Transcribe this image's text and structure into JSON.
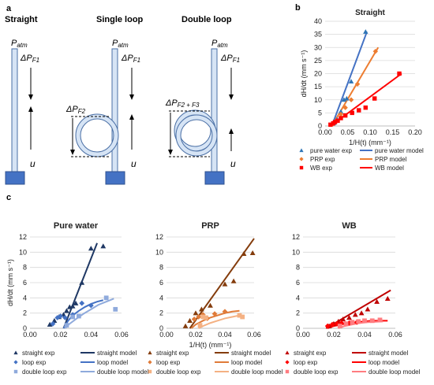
{
  "panel_labels": {
    "a": "a",
    "b": "b",
    "c": "c"
  },
  "diagrams": {
    "titles": [
      "Straight",
      "Single loop",
      "Double loop"
    ],
    "p_atm": "P",
    "p_atm_sub": "atm",
    "dp_f1": "ΔP",
    "dp_f1_sub": "F1",
    "dp_f2": "ΔP",
    "dp_f2_sub": "F2",
    "dp_f2f3": "ΔP",
    "dp_f2f3_sub": "F2 + F3",
    "u_label": "u",
    "tube_fill": "#d6e4f5",
    "tube_stroke": "#4a6fa5",
    "reservoir_color": "#4472c4"
  },
  "colors": {
    "blue_exp": "#2e75b6",
    "blue_model": "#4472c4",
    "orange_exp": "#ed7d31",
    "orange_model": "#ed7d31",
    "red_exp": "#ff0000",
    "red_model": "#ff0000",
    "navy": "#1f3864",
    "mid_blue": "#4472c4",
    "light_blue": "#8faadc",
    "brown": "#843c0c",
    "mid_orange": "#e07b39",
    "light_orange": "#f4b183",
    "dark_red": "#c00000",
    "mid_red": "#ff0000",
    "light_red": "#ff7c80"
  },
  "chart_data": [
    {
      "id": "b",
      "type": "scatter",
      "title": "Straight",
      "xlabel": "1/H(t) (mm⁻¹)",
      "ylabel": "dH/dt (mm s⁻¹)",
      "xlim": [
        0,
        0.2
      ],
      "ylim": [
        0,
        40
      ],
      "xticks": [
        "0.00",
        "0.05",
        "0.10",
        "0.15",
        "0.20"
      ],
      "yticks": [
        "0",
        "5",
        "10",
        "15",
        "20",
        "25",
        "30",
        "35",
        "40"
      ],
      "series": [
        {
          "name": "pure water exp",
          "kind": "exp",
          "marker": "triangle",
          "color": "#2e75b6",
          "x": [
            0.02,
            0.027,
            0.035,
            0.042,
            0.048,
            0.058,
            0.09
          ],
          "y": [
            1.2,
            2.5,
            5.5,
            10.0,
            10.5,
            17.0,
            36.0
          ]
        },
        {
          "name": "PRP exp",
          "kind": "exp",
          "marker": "diamond",
          "color": "#ed7d31",
          "x": [
            0.018,
            0.025,
            0.035,
            0.045,
            0.058,
            0.072,
            0.112
          ],
          "y": [
            0.8,
            2.0,
            4.5,
            7.0,
            10.0,
            16.0,
            28.5
          ]
        },
        {
          "name": "WB exp",
          "kind": "exp",
          "marker": "square",
          "color": "#ff0000",
          "x": [
            0.012,
            0.018,
            0.022,
            0.028,
            0.035,
            0.045,
            0.06,
            0.075,
            0.09,
            0.11,
            0.165
          ],
          "y": [
            0.5,
            1.0,
            1.5,
            2.0,
            3.0,
            4.0,
            5.0,
            6.0,
            7.0,
            10.5,
            20.0
          ]
        },
        {
          "name": "pure water model",
          "kind": "model",
          "color": "#4472c4",
          "x": [
            0.015,
            0.093
          ],
          "y": [
            0.0,
            36.0
          ]
        },
        {
          "name": "PRP model",
          "kind": "model",
          "color": "#ed7d31",
          "x": [
            0.015,
            0.118
          ],
          "y": [
            0.0,
            30.0
          ]
        },
        {
          "name": "WB model",
          "kind": "model",
          "color": "#ff0000",
          "x": [
            0.012,
            0.17
          ],
          "y": [
            0.0,
            20.0
          ]
        }
      ],
      "legend": [
        {
          "label": "pure water exp",
          "series": 0
        },
        {
          "label": "pure water model",
          "series": 3
        },
        {
          "label": "PRP exp",
          "series": 1
        },
        {
          "label": "PRP model",
          "series": 4
        },
        {
          "label": "WB exp",
          "series": 2
        },
        {
          "label": "WB model",
          "series": 5
        }
      ]
    },
    {
      "id": "c1",
      "type": "scatter",
      "title": "Pure water",
      "xlabel": "",
      "ylabel": "dH/dt (mm s⁻¹)",
      "xlim": [
        0,
        0.06
      ],
      "ylim": [
        0,
        12
      ],
      "xticks": [
        "0.00",
        "0.02",
        "0.04",
        "0.06"
      ],
      "yticks": [
        "0",
        "2",
        "4",
        "6",
        "8",
        "10",
        "12"
      ],
      "series": [
        {
          "name": "straight exp",
          "kind": "exp",
          "marker": "triangle",
          "color": "#1f3864",
          "x": [
            0.013,
            0.016,
            0.019,
            0.022,
            0.024,
            0.026,
            0.028,
            0.03,
            0.034,
            0.04,
            0.048
          ],
          "y": [
            0.5,
            1.0,
            1.5,
            1.8,
            2.3,
            2.8,
            2.9,
            3.3,
            6.0,
            10.5,
            10.8
          ]
        },
        {
          "name": "loop exp",
          "kind": "exp",
          "marker": "diamond",
          "color": "#4472c4",
          "x": [
            0.015,
            0.018,
            0.02,
            0.023,
            0.028,
            0.034,
            0.04
          ],
          "y": [
            0.6,
            1.4,
            1.6,
            1.4,
            1.8,
            3.3,
            3.0
          ]
        },
        {
          "name": "double loop exp",
          "kind": "exp",
          "marker": "square",
          "color": "#8faadc",
          "x": [
            0.024,
            0.028,
            0.032,
            0.05,
            0.056
          ],
          "y": [
            0.4,
            1.5,
            1.6,
            4.0,
            2.5
          ]
        },
        {
          "name": "straight model",
          "kind": "model",
          "color": "#1f3864",
          "x": [
            0.022,
            0.044
          ],
          "y": [
            0.0,
            11.2
          ]
        },
        {
          "name": "loop model",
          "kind": "model",
          "color": "#4472c4",
          "x": [
            0.022,
            0.025,
            0.028,
            0.032,
            0.036,
            0.04,
            0.044,
            0.048
          ],
          "y": [
            0.0,
            1.0,
            1.7,
            2.3,
            2.8,
            3.2,
            3.5,
            3.7
          ]
        },
        {
          "name": "double loop model",
          "kind": "model",
          "color": "#8faadc",
          "x": [
            0.023,
            0.026,
            0.03,
            0.035,
            0.04,
            0.045,
            0.05,
            0.055
          ],
          "y": [
            0.0,
            0.6,
            1.2,
            1.9,
            2.5,
            3.1,
            3.5,
            3.9
          ]
        }
      ]
    },
    {
      "id": "c2",
      "type": "scatter",
      "title": "PRP",
      "xlabel": "1/H(t) (mm⁻¹)",
      "ylabel": "",
      "xlim": [
        0,
        0.06
      ],
      "ylim": [
        0,
        12
      ],
      "xticks": [
        "0.00",
        "0.02",
        "0.04",
        "0.06"
      ],
      "yticks": [
        "0",
        "2",
        "4",
        "6",
        "8",
        "10",
        "12"
      ],
      "series": [
        {
          "name": "straight exp",
          "kind": "exp",
          "marker": "triangle",
          "color": "#843c0c",
          "x": [
            0.013,
            0.016,
            0.02,
            0.024,
            0.03,
            0.04,
            0.046,
            0.053,
            0.059
          ],
          "y": [
            0.3,
            1.0,
            2.0,
            2.5,
            3.0,
            5.8,
            6.2,
            9.8,
            9.9
          ]
        },
        {
          "name": "loop exp",
          "kind": "exp",
          "marker": "diamond",
          "color": "#e07b39",
          "x": [
            0.019,
            0.022,
            0.025,
            0.028,
            0.033,
            0.04
          ],
          "y": [
            1.2,
            1.5,
            1.8,
            1.3,
            1.9,
            2.2
          ]
        },
        {
          "name": "double loop exp",
          "kind": "exp",
          "marker": "square",
          "color": "#f4b183",
          "x": [
            0.023,
            0.025,
            0.027,
            0.05,
            0.052
          ],
          "y": [
            0.4,
            1.5,
            1.4,
            1.7,
            1.5
          ]
        },
        {
          "name": "straight model",
          "kind": "model",
          "color": "#843c0c",
          "x": [
            0.016,
            0.06
          ],
          "y": [
            0.0,
            11.8
          ]
        },
        {
          "name": "loop model",
          "kind": "model",
          "color": "#e07b39",
          "x": [
            0.017,
            0.02,
            0.025,
            0.03,
            0.035,
            0.04,
            0.045,
            0.05
          ],
          "y": [
            0.0,
            0.5,
            1.0,
            1.4,
            1.7,
            2.0,
            2.2,
            2.3
          ]
        },
        {
          "name": "double loop model",
          "kind": "model",
          "color": "#f4b183",
          "x": [
            0.022,
            0.025,
            0.03,
            0.035,
            0.04,
            0.045,
            0.05
          ],
          "y": [
            0.0,
            0.3,
            0.7,
            1.0,
            1.3,
            1.5,
            1.7
          ]
        }
      ]
    },
    {
      "id": "c3",
      "type": "scatter",
      "title": "WB",
      "xlabel": "",
      "ylabel": "",
      "xlim": [
        0,
        0.06
      ],
      "ylim": [
        0,
        12
      ],
      "xticks": [
        "0.00",
        "0.02",
        "0.04",
        "0.06"
      ],
      "yticks": [
        "0",
        "2",
        "4",
        "6",
        "8",
        "10",
        "12"
      ],
      "series": [
        {
          "name": "straight exp",
          "kind": "exp",
          "marker": "triangle",
          "color": "#c00000",
          "x": [
            0.017,
            0.02,
            0.023,
            0.026,
            0.03,
            0.034,
            0.038,
            0.042,
            0.048,
            0.055
          ],
          "y": [
            0.3,
            0.6,
            0.9,
            1.2,
            1.4,
            1.8,
            2.0,
            2.5,
            3.5,
            3.9
          ]
        },
        {
          "name": "loop exp",
          "kind": "exp",
          "marker": "diamond",
          "color": "#ff0000",
          "x": [
            0.016,
            0.019,
            0.022,
            0.025,
            0.03,
            0.035
          ],
          "y": [
            0.3,
            0.5,
            0.6,
            0.7,
            0.7,
            0.8
          ]
        },
        {
          "name": "double loop exp",
          "kind": "exp",
          "marker": "square",
          "color": "#ff7c80",
          "x": [
            0.024,
            0.028,
            0.032,
            0.036,
            0.04,
            0.045,
            0.05
          ],
          "y": [
            0.3,
            0.6,
            0.8,
            0.9,
            1.0,
            1.0,
            1.1
          ]
        },
        {
          "name": "straight model",
          "kind": "model",
          "color": "#c00000",
          "x": [
            0.015,
            0.057
          ],
          "y": [
            0.0,
            5.0
          ]
        },
        {
          "name": "loop model",
          "kind": "model",
          "color": "#ff0000",
          "x": [
            0.016,
            0.02,
            0.025,
            0.03,
            0.035,
            0.04,
            0.045,
            0.05,
            0.055
          ],
          "y": [
            0.0,
            0.3,
            0.5,
            0.7,
            0.8,
            0.9,
            1.0,
            1.0,
            1.0
          ]
        },
        {
          "name": "double loop model",
          "kind": "model",
          "color": "#ff7c80",
          "x": [
            0.023,
            0.027,
            0.032,
            0.037,
            0.042,
            0.047,
            0.052
          ],
          "y": [
            0.0,
            0.3,
            0.5,
            0.7,
            0.8,
            0.85,
            0.9
          ]
        }
      ]
    }
  ]
}
